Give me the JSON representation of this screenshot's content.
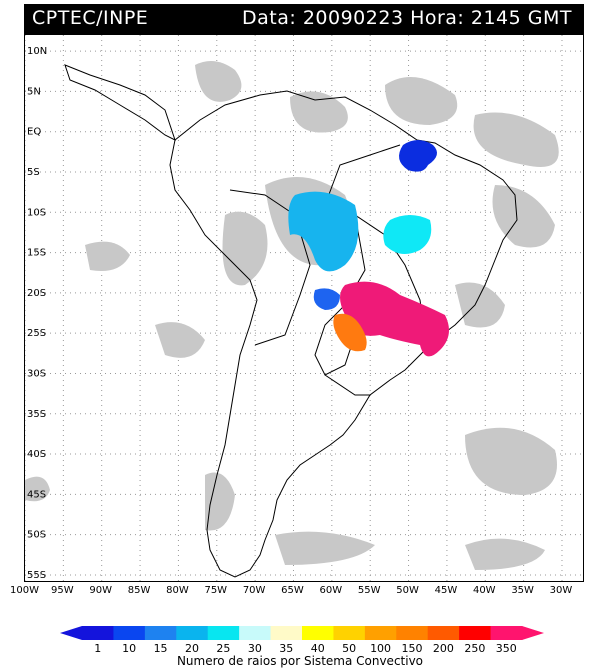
{
  "header": {
    "source": "CPTEC/INPE",
    "datetime": "Data: 20090223 Hora: 2145 GMT"
  },
  "map": {
    "lat_labels": [
      "10N",
      "5N",
      "EQ",
      "5S",
      "10S",
      "15S",
      "20S",
      "25S",
      "30S",
      "35S",
      "40S",
      "45S",
      "50S",
      "55S"
    ],
    "lon_labels": [
      "100W",
      "95W",
      "90W",
      "85W",
      "80W",
      "75W",
      "70W",
      "65W",
      "60W",
      "55W",
      "50W",
      "45W",
      "40W",
      "35W",
      "30W"
    ],
    "lat_range": [
      -56,
      12
    ],
    "lon_range": [
      -100,
      -27
    ],
    "clouds_color": "#c8c8c8",
    "coast_color": "#000000",
    "lightning_regions": [
      {
        "name": "ne-brazil",
        "color": "#0b2de0"
      },
      {
        "name": "central-amazon",
        "color": "#17b4ee"
      },
      {
        "name": "bahia",
        "color": "#0fe8f6"
      },
      {
        "name": "rondonia",
        "color": "#1e64f0"
      },
      {
        "name": "paraguay",
        "color": "#ff7a10"
      },
      {
        "name": "southeast-brazil",
        "color": "#ef1a78"
      },
      {
        "name": "mato-grosso-small",
        "color": "#fff4a0"
      }
    ]
  },
  "legend": {
    "labels": [
      "1",
      "10",
      "15",
      "20",
      "25",
      "30",
      "35",
      "40",
      "50",
      "100",
      "150",
      "200",
      "250",
      "350"
    ],
    "colors": [
      "#1414dc",
      "#0a46f0",
      "#1e82f0",
      "#0ab4ee",
      "#08e6f0",
      "#c8fafa",
      "#fffac8",
      "#ffff00",
      "#ffd200",
      "#ffa000",
      "#ff8200",
      "#ff5a00",
      "#ff0000",
      "#ff146e"
    ],
    "caption": "Numero de raios por Sistema Convectivo"
  }
}
